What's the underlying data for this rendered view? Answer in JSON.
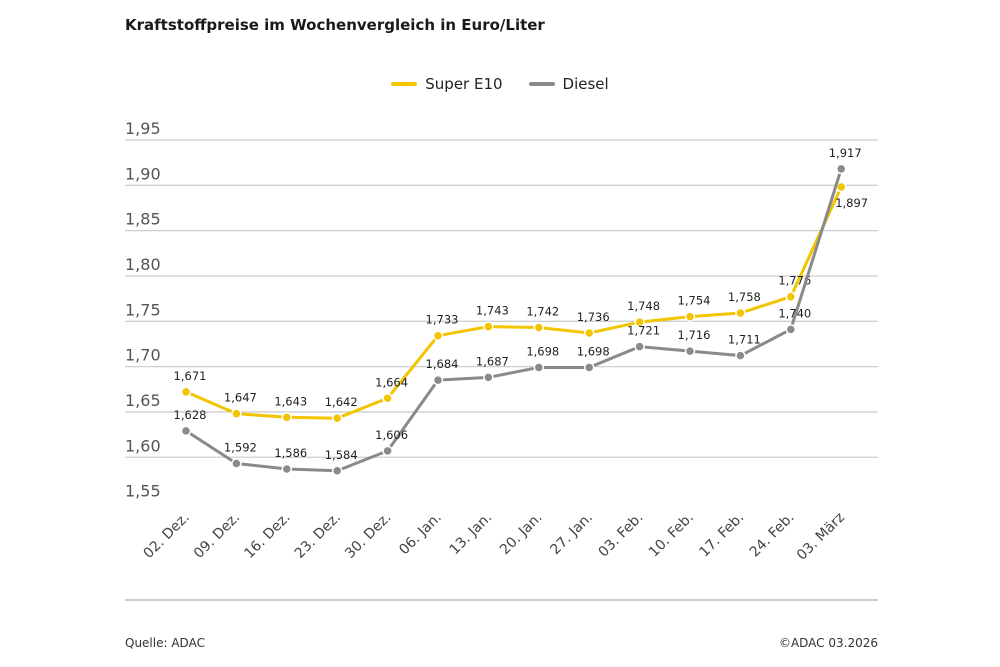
{
  "chart_data": {
    "type": "line",
    "title": "Kraftstoffpreise im Wochenvergleich in Euro/Liter",
    "xlabel": "",
    "ylabel": "",
    "categories": [
      "02. Dez.",
      "09. Dez.",
      "16. Dez.",
      "23. Dez.",
      "30. Dez.",
      "06. Jan.",
      "13. Jan.",
      "20. Jan.",
      "27. Jan.",
      "03. Feb.",
      "10. Feb.",
      "17. Feb.",
      "24. Feb.",
      "03. März"
    ],
    "series": [
      {
        "name": "Super E10",
        "color": "#f2c500",
        "values": [
          1.671,
          1.647,
          1.643,
          1.642,
          1.664,
          1.733,
          1.743,
          1.742,
          1.736,
          1.748,
          1.754,
          1.758,
          1.776,
          1.897
        ],
        "labels": [
          "1,671",
          "1,647",
          "1,643",
          "1,642",
          "1,664",
          "1,733",
          "1,743",
          "1,742",
          "1,736",
          "1,748",
          "1,754",
          "1,758",
          "1,776",
          "1,897"
        ]
      },
      {
        "name": "Diesel",
        "color": "#8a8a8a",
        "values": [
          1.628,
          1.592,
          1.586,
          1.584,
          1.606,
          1.684,
          1.687,
          1.698,
          1.698,
          1.721,
          1.716,
          1.711,
          1.74,
          1.917
        ],
        "labels": [
          "1,628",
          "1,592",
          "1,586",
          "1,584",
          "1,606",
          "1,684",
          "1,687",
          "1,698",
          "1,698",
          "1,721",
          "1,716",
          "1,711",
          "1,740",
          "1,917"
        ]
      }
    ],
    "ylim": [
      1.55,
      1.95
    ],
    "yticks": [
      1.55,
      1.6,
      1.65,
      1.7,
      1.75,
      1.8,
      1.85,
      1.9,
      1.95
    ],
    "ytick_labels": [
      "1,55",
      "1,60",
      "1,65",
      "1,70",
      "1,75",
      "1,80",
      "1,85",
      "1,90",
      "1,95"
    ],
    "grid": true,
    "legend": "top-center"
  },
  "footer": {
    "source": "Quelle: ADAC",
    "copyright": "©ADAC 03.2026"
  }
}
